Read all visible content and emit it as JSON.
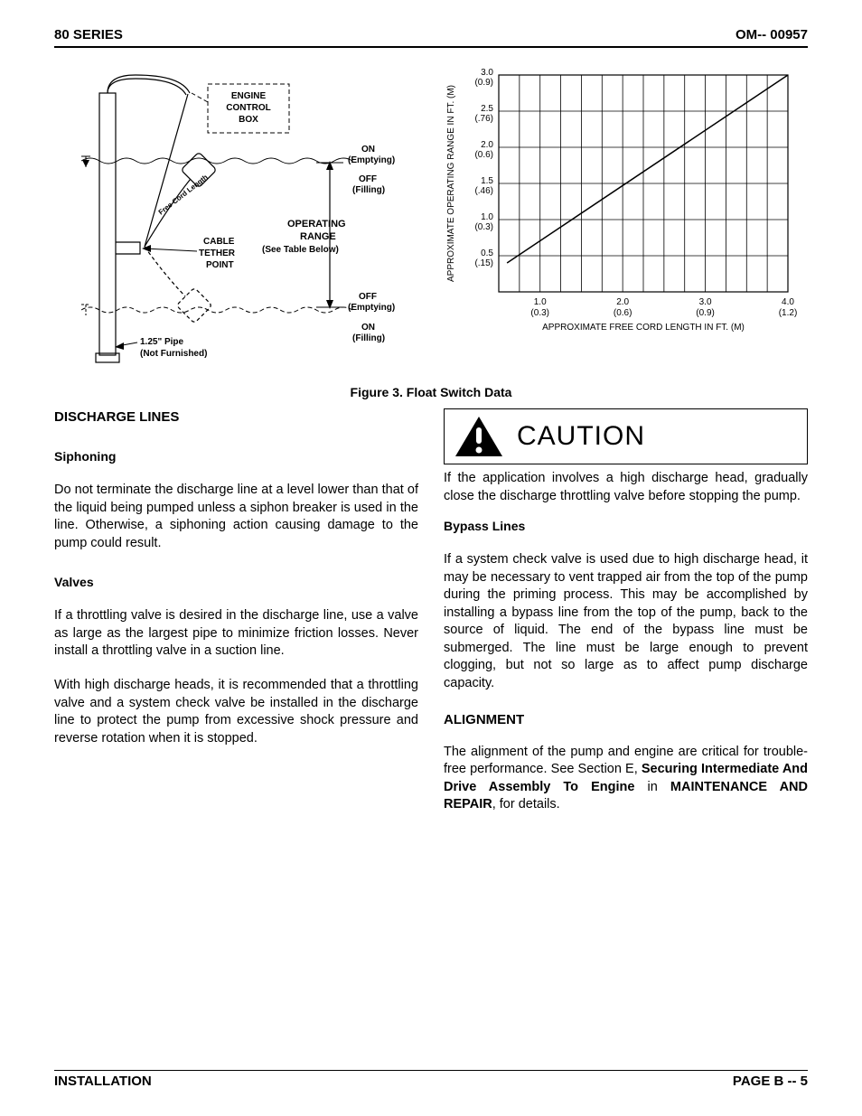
{
  "header": {
    "left": "80 SERIES",
    "right": "OM-- 00957"
  },
  "figure": {
    "caption": "Figure 3.  Float Switch Data",
    "diagram": {
      "labels": {
        "engine_box": "ENGINE\nCONTROL\nBOX",
        "on_emptying_top": "ON\n(Emptying)",
        "off_filling_top": "OFF\n(Filling)",
        "operating_range": "OPERATING\nRANGE\n(See Table Below)",
        "cable_tether": "CABLE\nTETHER\nPOINT",
        "free_cord": "Free Cord Length",
        "off_emptying_bot": "OFF\n(Emptying)",
        "on_filling_bot": "ON\n(Filling)",
        "pipe": "1.25\" Pipe\n(Not Furnished)"
      },
      "line_color": "#000000",
      "line_width": 1.2,
      "font_size_small": 9,
      "font_size_bold": 10
    },
    "chart": {
      "type": "line",
      "y_label": "APPROXIMATE OPERATING RANGE IN FT. (M)",
      "x_label": "APPROXIMATE FREE CORD LENGTH IN FT. (M)",
      "y_ticks": [
        {
          "ft": "0.5",
          "m": "(.15)"
        },
        {
          "ft": "1.0",
          "m": "(0.3)"
        },
        {
          "ft": "1.5",
          "m": "(.46)"
        },
        {
          "ft": "2.0",
          "m": "(0.6)"
        },
        {
          "ft": "2.5",
          "m": "(.76)"
        },
        {
          "ft": "3.0",
          "m": "(0.9)"
        }
      ],
      "x_ticks": [
        {
          "ft": "1.0",
          "m": "(0.3)"
        },
        {
          "ft": "2.0",
          "m": "(0.6)"
        },
        {
          "ft": "3.0",
          "m": "(0.9)"
        },
        {
          "ft": "4.0",
          "m": "(1.2)"
        }
      ],
      "x_range": [
        0.5,
        4.0
      ],
      "y_range": [
        0,
        3.0
      ],
      "line_points": [
        [
          0.6,
          0.4
        ],
        [
          4.0,
          3.0
        ]
      ],
      "grid_color": "#000000",
      "grid_width": 0.8,
      "line_color": "#000000",
      "line_width": 1.5,
      "tick_font_size": 10,
      "axis_label_font_size": 10
    }
  },
  "body": {
    "discharge_heading": "DISCHARGE LINES",
    "siphoning_heading": "Siphoning",
    "siphoning_para": "Do not terminate the discharge line at a level lower than that of the liquid being pumped unless a siphon breaker is used in the line. Otherwise, a siphoning action causing damage to the pump could result.",
    "valves_heading": "Valves",
    "valves_para1": "If a throttling valve is desired in the discharge line, use a valve as large as the largest pipe to minimize friction losses. Never install a throttling valve in a suction line.",
    "valves_para2": "With high discharge heads, it is recommended that a throttling valve and a system check valve be installed in the discharge line to protect the pump from excessive shock pressure and reverse rotation when it is stopped.",
    "caution_word": "CAUTION",
    "caution_para": "If the application involves a high discharge head, gradually close the discharge throttling valve before stopping the pump.",
    "bypass_heading": "Bypass Lines",
    "bypass_para": "If a system check valve is used due to high discharge head, it may be necessary to vent trapped air from the top of the pump during the priming process. This may be accomplished by installing a bypass line from the top of the pump, back to the source of liquid. The end of the bypass line must be submerged. The line must be large enough to prevent clogging, but not so large as to affect pump discharge capacity.",
    "alignment_heading": "ALIGNMENT",
    "alignment_para_pre": "The alignment of the pump and engine are critical for trouble-free performance. See Section E,  ",
    "alignment_bold1": "Securing Intermediate And Drive Assembly To Engine",
    "alignment_mid": " in ",
    "alignment_bold2": "MAINTENANCE AND REPAIR",
    "alignment_post": ", for details."
  },
  "footer": {
    "left": "INSTALLATION",
    "right": "PAGE B -- 5"
  }
}
